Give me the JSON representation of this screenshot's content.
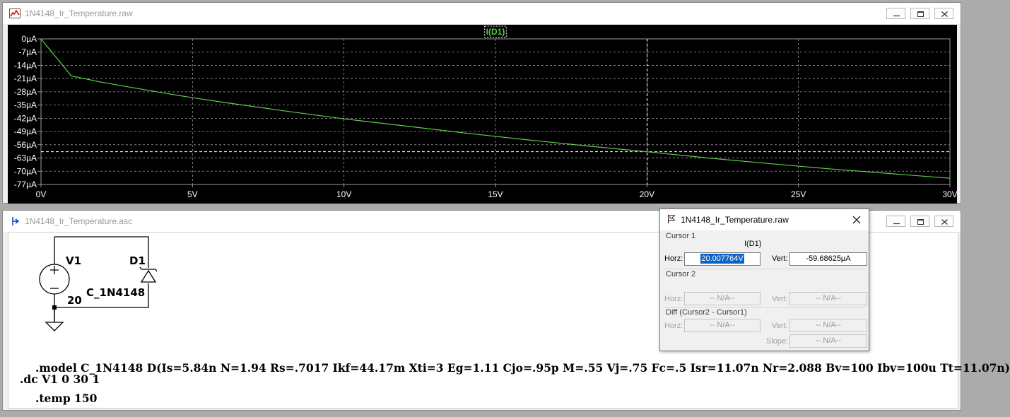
{
  "plot_window": {
    "title": "1N4148_Ir_Temperature.raw",
    "trace_label": "I(D1)",
    "colors": {
      "background": "#000000",
      "trace": "#5ccc4a",
      "grid": "#9a9a9a",
      "cursor": "#ffffff",
      "axis_text": "#ffffff"
    },
    "icons": [
      "waveform-icon",
      "minimize-icon",
      "restore-icon",
      "close-icon"
    ]
  },
  "chart_data": {
    "type": "line",
    "title": "",
    "series": [
      {
        "name": "I(D1)",
        "x": [
          0,
          1,
          2,
          3,
          4,
          5,
          6,
          8,
          10,
          12,
          14,
          16,
          18,
          20,
          22,
          24,
          26,
          28,
          30
        ],
        "y": [
          0,
          -19.6,
          -22.9,
          -25.7,
          -28.5,
          -31.1,
          -33.5,
          -38.0,
          -42.3,
          -46.0,
          -49.8,
          -53.3,
          -56.6,
          -59.7,
          -63.0,
          -65.9,
          -68.7,
          -71.2,
          -73.7
        ]
      }
    ],
    "xlabel": "",
    "ylabel": "",
    "x_ticks": [
      "0V",
      "5V",
      "10V",
      "15V",
      "20V",
      "25V",
      "30V"
    ],
    "x_tick_values": [
      0,
      5,
      10,
      15,
      20,
      25,
      30
    ],
    "y_ticks": [
      "0µA",
      "-7µA",
      "-14µA",
      "-21µA",
      "-28µA",
      "-35µA",
      "-42µA",
      "-49µA",
      "-56µA",
      "-63µA",
      "-70µA",
      "-77µA"
    ],
    "y_tick_values": [
      0,
      -7,
      -14,
      -21,
      -28,
      -35,
      -42,
      -49,
      -56,
      -63,
      -70,
      -77
    ],
    "xlim": [
      0,
      30
    ],
    "ylim": [
      -77,
      0
    ],
    "grid": true,
    "cursor": {
      "x": 20.007764,
      "y": -59.68625
    }
  },
  "schematic_window": {
    "title": "1N4148_Ir_Temperature.asc",
    "icons": [
      "schematic-icon",
      "minimize-icon",
      "restore-icon",
      "close-icon"
    ],
    "components": {
      "source_name": "V1",
      "source_value": "20",
      "diode_name": "D1",
      "diode_model": "C_1N4148"
    },
    "directives": {
      "model": ".model C_1N4148 D(Is=5.84n N=1.94 Rs=.7017 Ikf=44.17m Xti=3 Eg=1.11 Cjo=.95p M=.55 Vj=.75 Fc=.5 Isr=11.07n Nr=2.088 Bv=100 Ibv=100u Tt=11.07n)",
      "dc": ".dc V1 0 30 1",
      "temp": ".temp 150"
    }
  },
  "cursor_dialog": {
    "title": "1N4148_Ir_Temperature.raw",
    "cursor1": {
      "group": "Cursor 1",
      "trace": "I(D1)",
      "horz_label": "Horz:",
      "horz_value": "20.007764V",
      "vert_label": "Vert:",
      "vert_value": "-59.68625µA"
    },
    "cursor2": {
      "group": "Cursor 2",
      "horz_label": "Horz:",
      "horz_value": "-- N/A--",
      "vert_label": "Vert:",
      "vert_value": "-- N/A--"
    },
    "diff": {
      "group": "Diff (Cursor2 - Cursor1)",
      "horz_label": "Horz:",
      "horz_value": "-- N/A--",
      "vert_label": "Vert:",
      "vert_value": "-- N/A--",
      "slope_label": "Slope:",
      "slope_value": "-- N/A--"
    }
  }
}
